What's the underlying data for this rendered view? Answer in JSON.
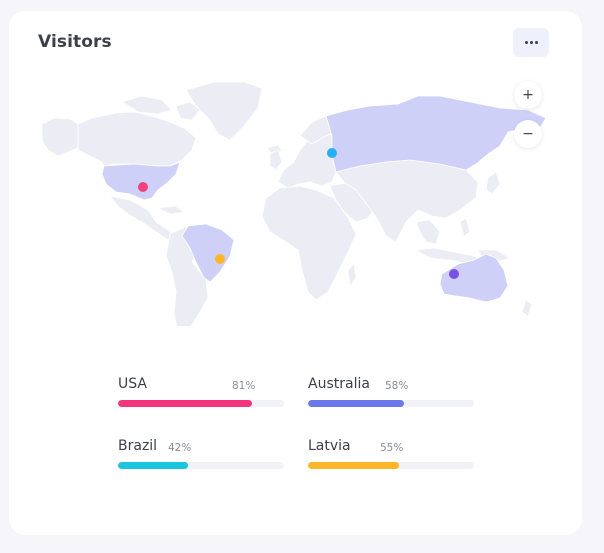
{
  "card": {
    "title": "Visitors",
    "menu_icon": "more-horizontal-icon"
  },
  "map": {
    "zoom_in_label": "+",
    "zoom_out_label": "−",
    "land_color": "#ececf4",
    "highlight_color": "#ced0f7",
    "highlighted_regions": [
      "USA",
      "Brazil",
      "Russia",
      "Australia"
    ],
    "markers": [
      {
        "country": "USA",
        "color": "#f3417f"
      },
      {
        "country": "Brazil",
        "color": "#fdb628"
      },
      {
        "country": "Latvia",
        "color": "#2aaef5"
      },
      {
        "country": "Australia",
        "color": "#7a4fe6"
      }
    ]
  },
  "stats": [
    {
      "name": "USA",
      "percent_label": "81%",
      "value": 0.81,
      "color": "#f2347c"
    },
    {
      "name": "Australia",
      "percent_label": "58%",
      "value": 0.58,
      "color": "#6a78ea"
    },
    {
      "name": "Brazil",
      "percent_label": "42%",
      "value": 0.42,
      "color": "#19c6dd"
    },
    {
      "name": "Latvia",
      "percent_label": "55%",
      "value": 0.55,
      "color": "#fdb628"
    }
  ]
}
